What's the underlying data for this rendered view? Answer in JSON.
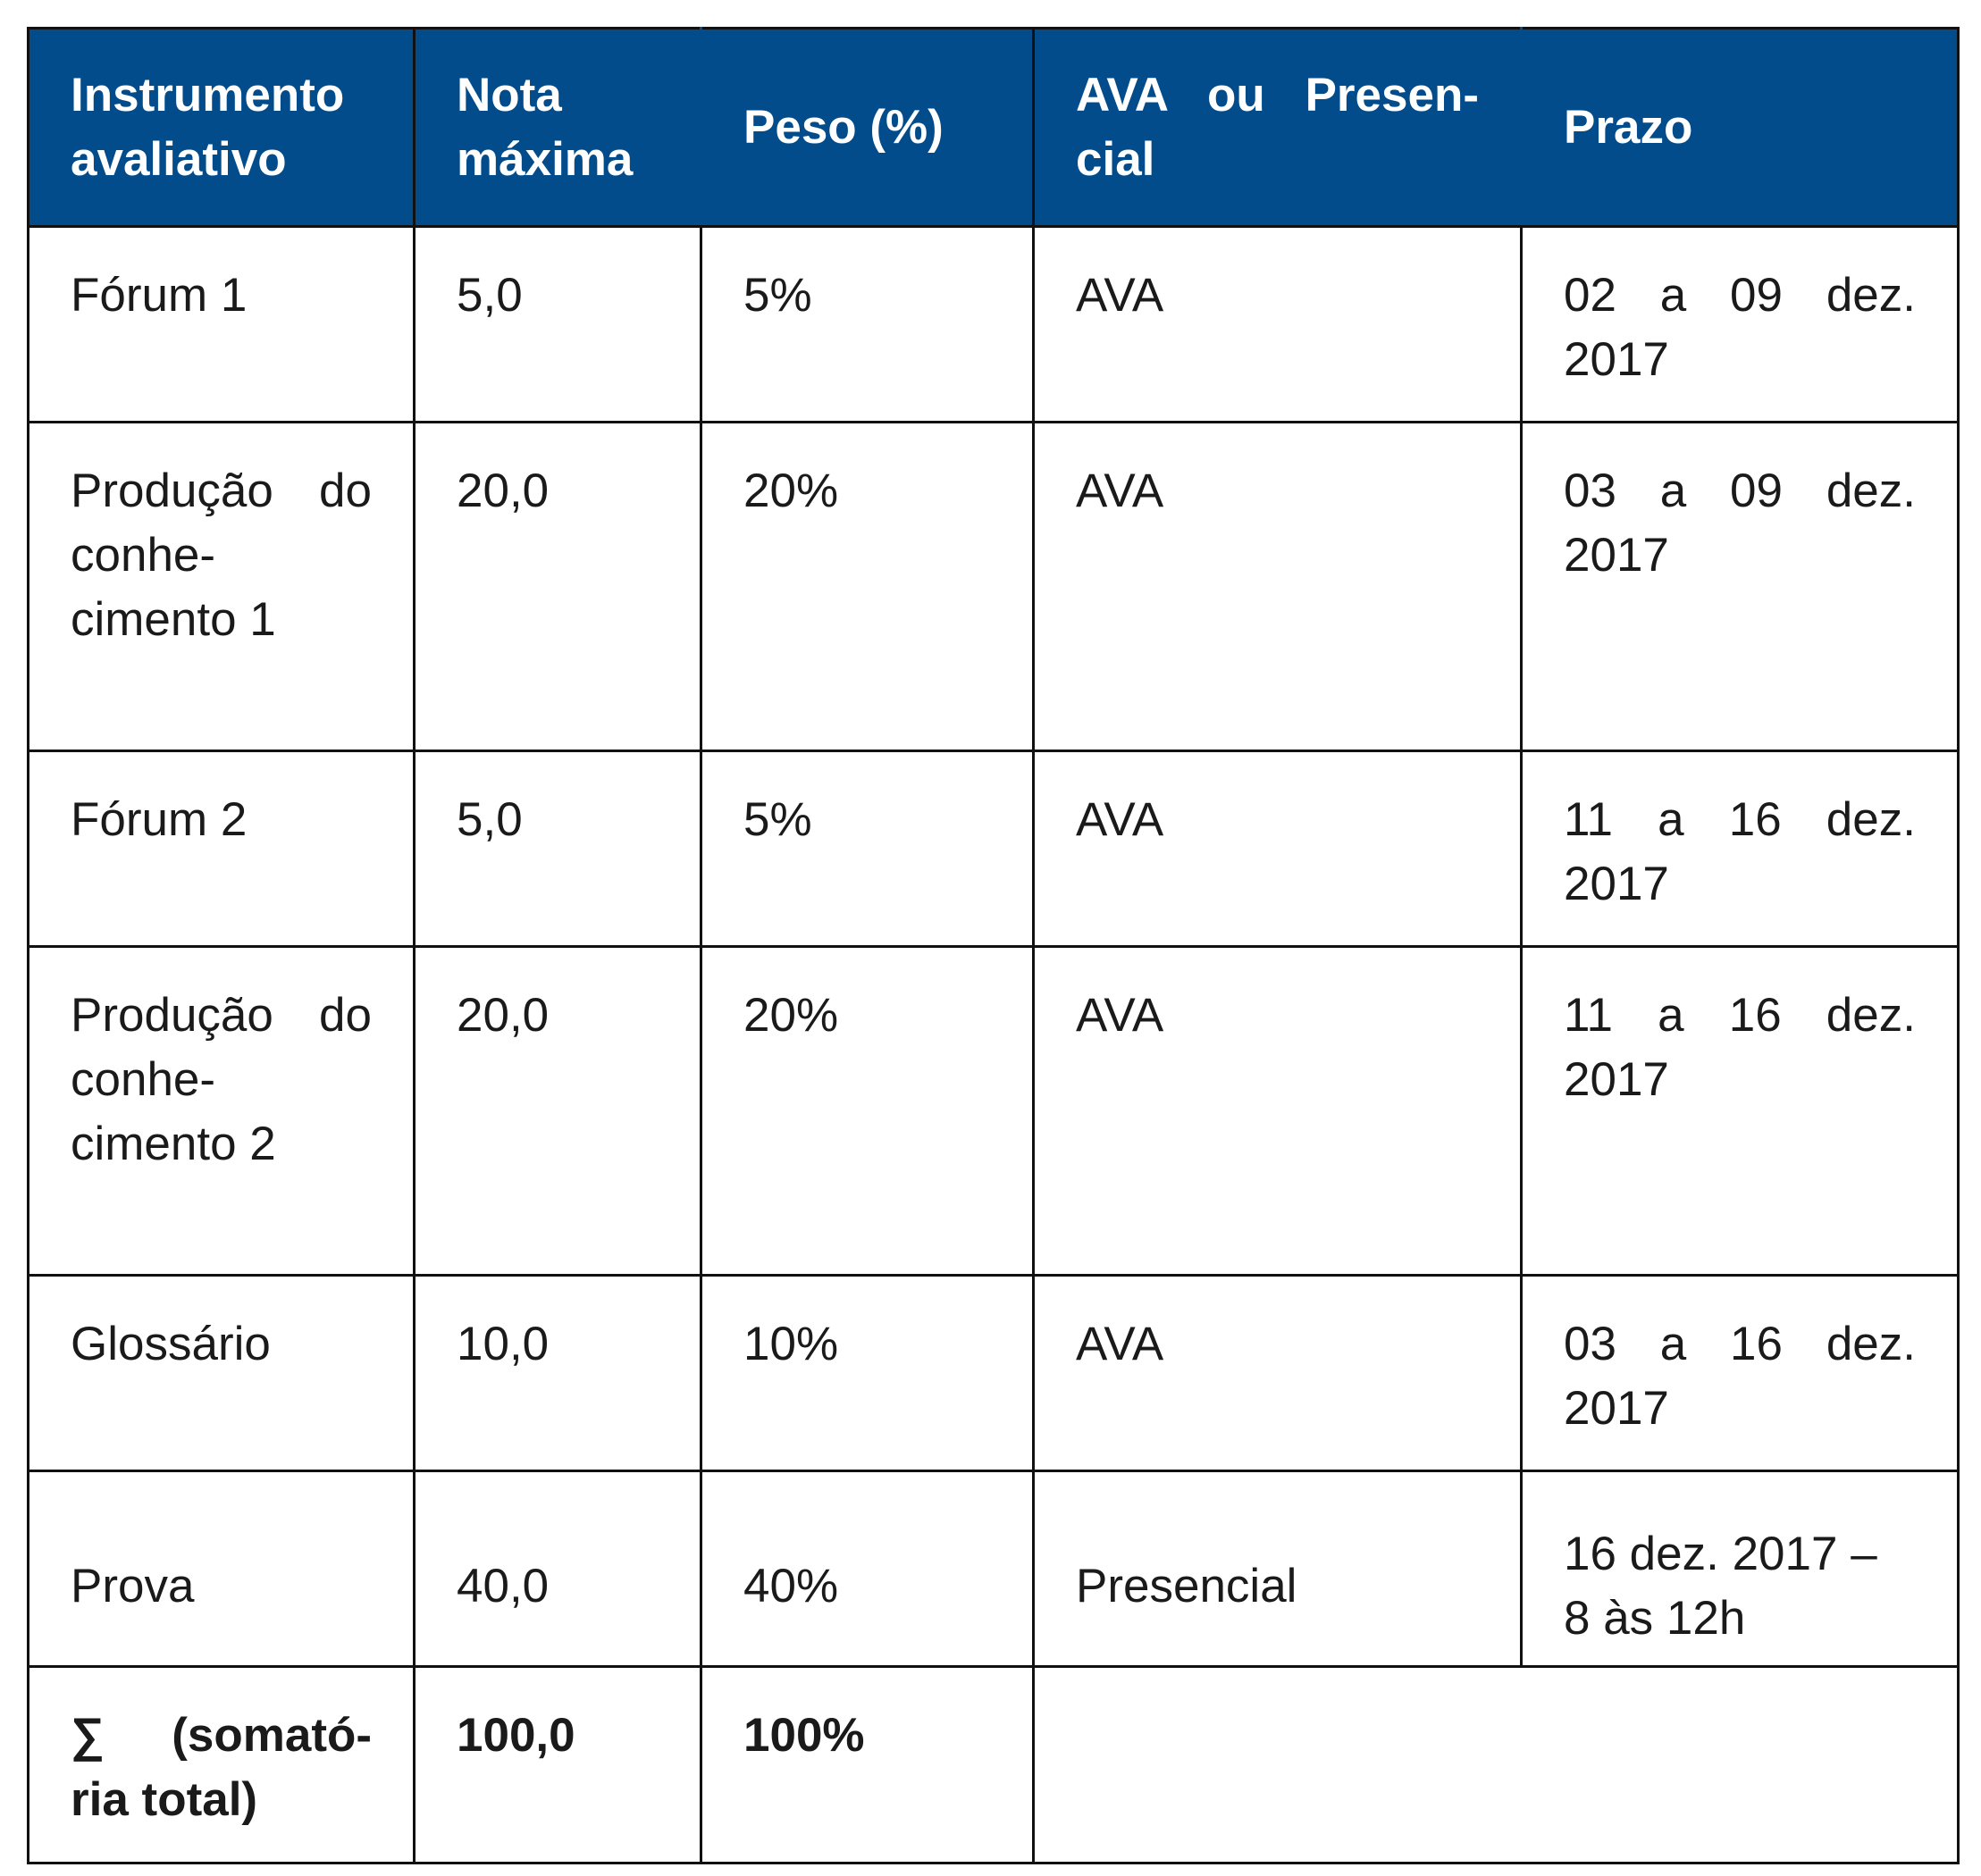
{
  "table": {
    "headers": {
      "instrumento": "Instrumento avaliativo",
      "nota": "Nota máxima",
      "peso": "Peso (%)",
      "modalidade": "AVA ou Presen-cial",
      "prazo": "Prazo"
    },
    "rows": [
      {
        "instrumento": "Fórum 1",
        "nota": "5,0",
        "peso": "5%",
        "modalidade": "AVA",
        "prazo": "02 a 09 dez. 2017"
      },
      {
        "instrumento": "Produção do conhe-cimento 1",
        "nota": "20,0",
        "peso": "20%",
        "modalidade": "AVA",
        "prazo": "03 a 09 dez. 2017"
      },
      {
        "instrumento": "Fórum 2",
        "nota": "5,0",
        "peso": "5%",
        "modalidade": "AVA",
        "prazo": "11 a 16 dez. 2017"
      },
      {
        "instrumento": "Produção do conhe-cimento 2",
        "nota": "20,0",
        "peso": "20%",
        "modalidade": "AVA",
        "prazo": "11 a 16 dez. 2017"
      },
      {
        "instrumento": "Glossário",
        "nota": "10,0",
        "peso": "10%",
        "modalidade": "AVA",
        "prazo": "03 a 16 dez. 2017"
      },
      {
        "instrumento": "Prova",
        "nota": "40,0",
        "peso": "40%",
        "modalidade": "Presencial",
        "prazo": "16 dez. 2017 – 8 às 12h"
      }
    ],
    "total": {
      "instrumento": "∑ (somató-ria total)",
      "nota": "100,0",
      "peso": "100%"
    }
  },
  "colors": {
    "header_background": "#034c8c",
    "header_text": "#ffffff",
    "border": "#111111"
  }
}
